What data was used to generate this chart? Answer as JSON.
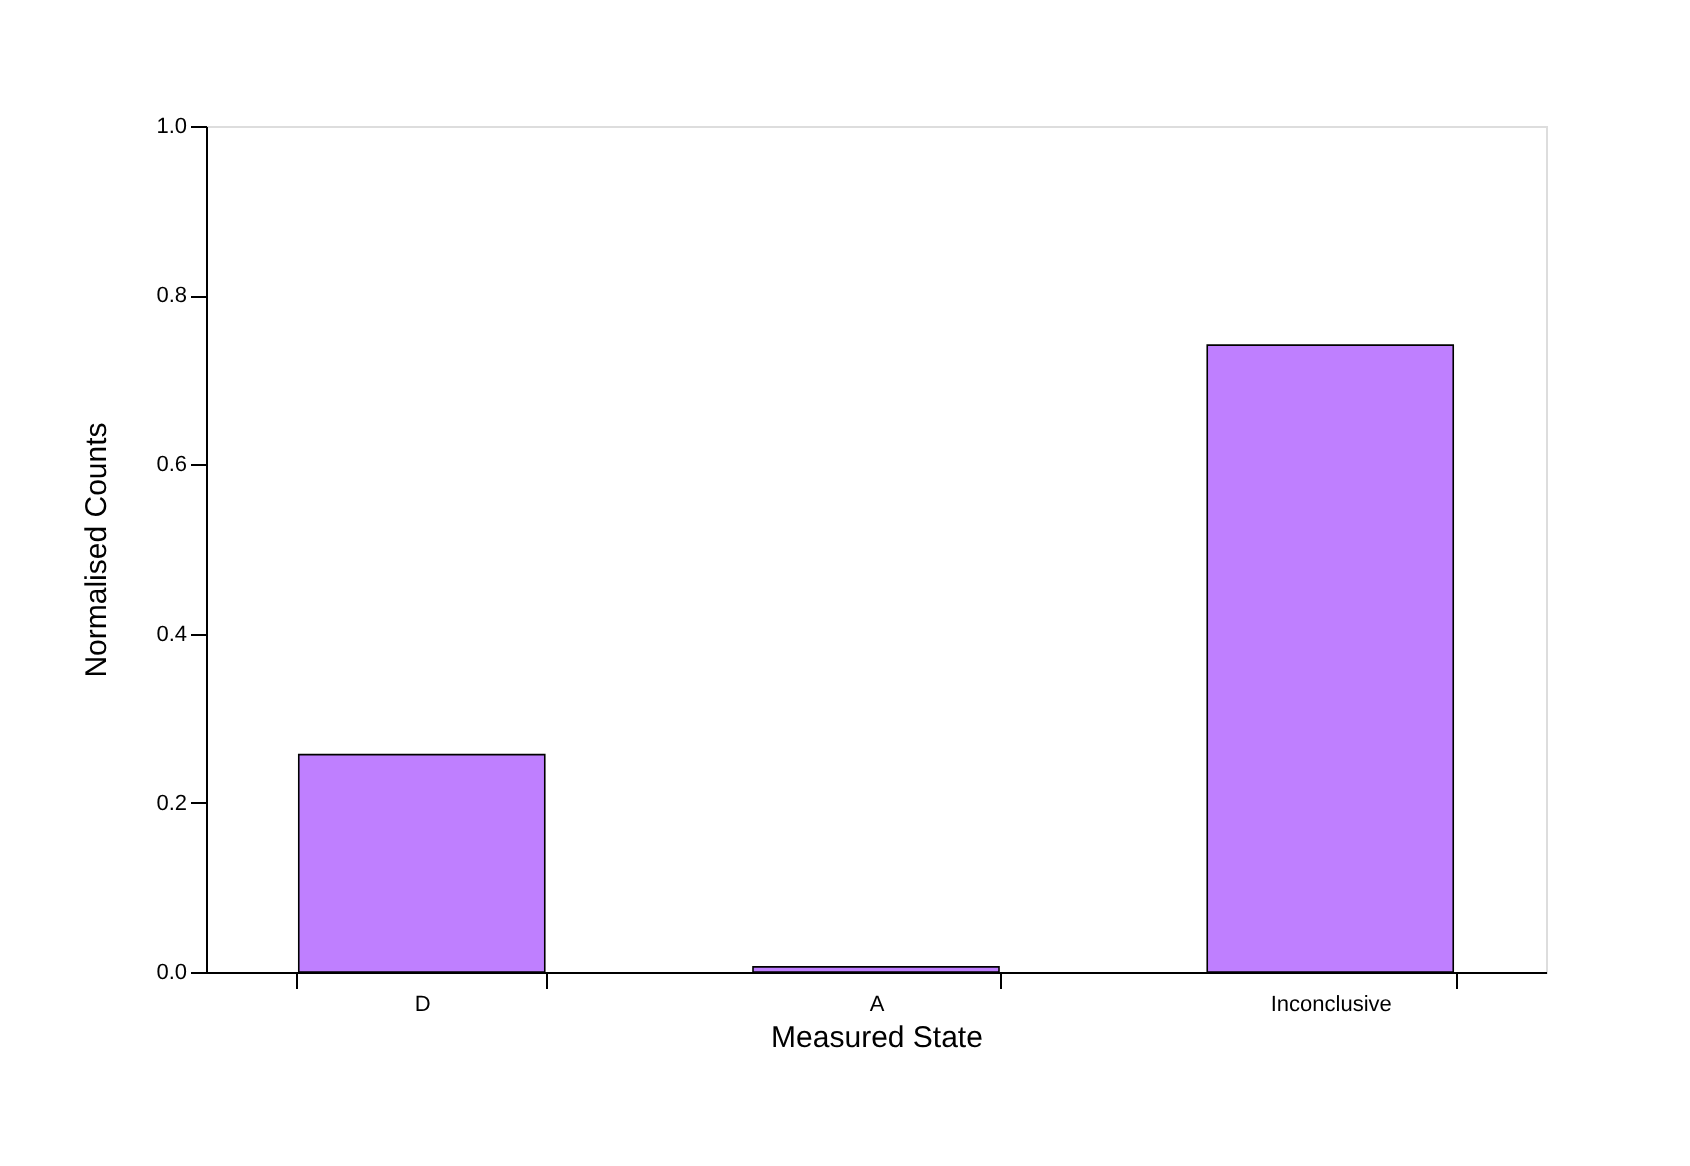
{
  "chart_data": {
    "type": "bar",
    "xlabel": "Measured State",
    "ylabel": "Normalised Counts",
    "categories": [
      "D",
      "A",
      "Inconclusive"
    ],
    "values": [
      0.257,
      0.006,
      0.741
    ],
    "color": "#bf7fff",
    "ylim": [
      0,
      1.0
    ],
    "yticks": [
      {
        "value": 0,
        "label": "0.0"
      },
      {
        "value": 0.2,
        "label": "0.2"
      },
      {
        "value": 0.4,
        "label": "0.4"
      },
      {
        "value": 0.6,
        "label": "0.6"
      },
      {
        "value": 0.8,
        "label": "0.8"
      },
      {
        "value": 1.0,
        "label": "1.0"
      }
    ],
    "grid": false
  }
}
